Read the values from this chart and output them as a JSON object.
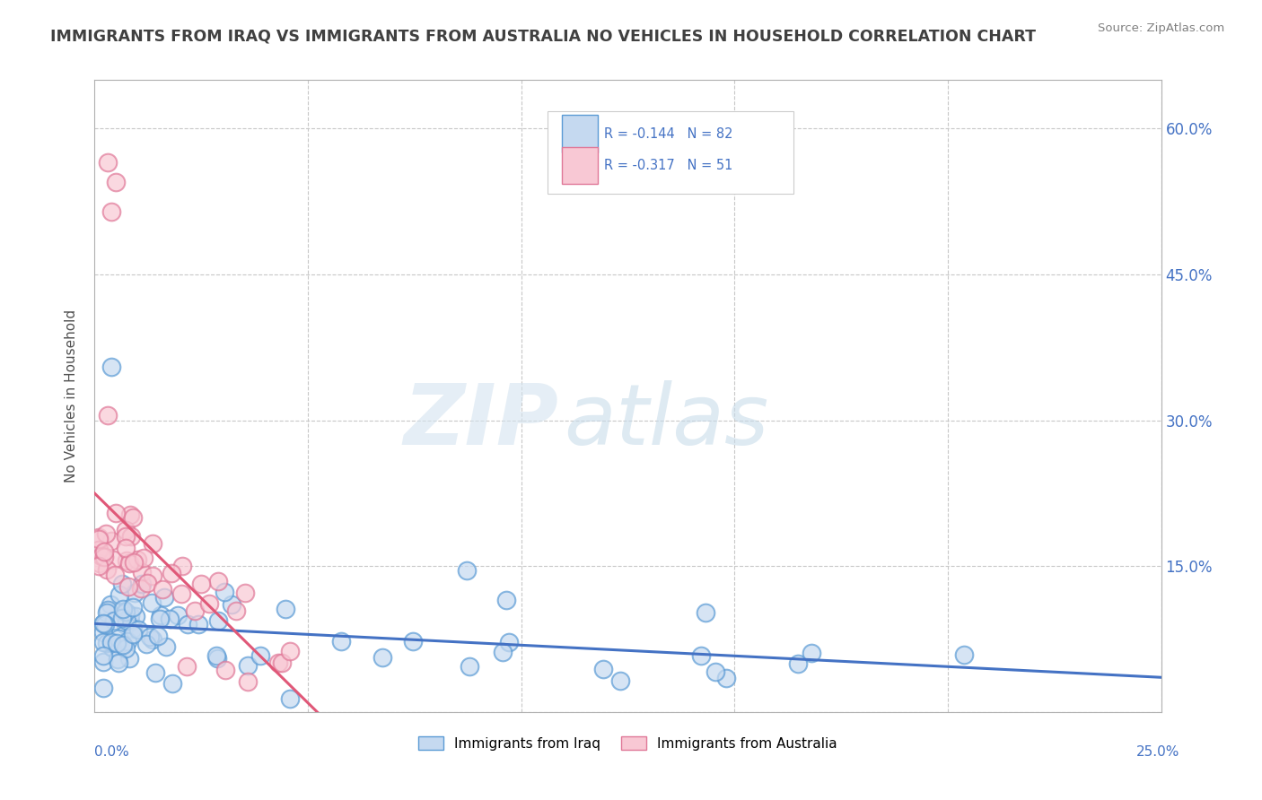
{
  "title": "IMMIGRANTS FROM IRAQ VS IMMIGRANTS FROM AUSTRALIA NO VEHICLES IN HOUSEHOLD CORRELATION CHART",
  "source": "Source: ZipAtlas.com",
  "ylabel": "No Vehicles in Household",
  "legend_label1": "Immigrants from Iraq",
  "legend_label2": "Immigrants from Australia",
  "legend_r1": "R = -0.144",
  "legend_n1": "N = 82",
  "legend_r2": "R = -0.317",
  "legend_n2": "N = 51",
  "color_iraq_fill": "#c5d9f0",
  "color_iraq_edge": "#5b9bd5",
  "color_aus_fill": "#f8c8d4",
  "color_aus_edge": "#e07898",
  "color_iraq_line": "#4472c4",
  "color_aus_line": "#e05878",
  "background_color": "#ffffff",
  "title_color": "#404040",
  "source_color": "#808080",
  "grid_color": "#c8c8c8",
  "axis_color": "#b0b0b0",
  "right_tick_color": "#4472c4",
  "xlim": [
    0.0,
    0.25
  ],
  "ylim": [
    0.0,
    0.65
  ],
  "y_ticks": [
    0.0,
    0.15,
    0.3,
    0.45,
    0.6
  ],
  "y_tick_labels": [
    "",
    "15.0%",
    "30.0%",
    "45.0%",
    "60.0%"
  ],
  "watermark_zip_color": "#d5e4f0",
  "watermark_atlas_color": "#c8dcea"
}
